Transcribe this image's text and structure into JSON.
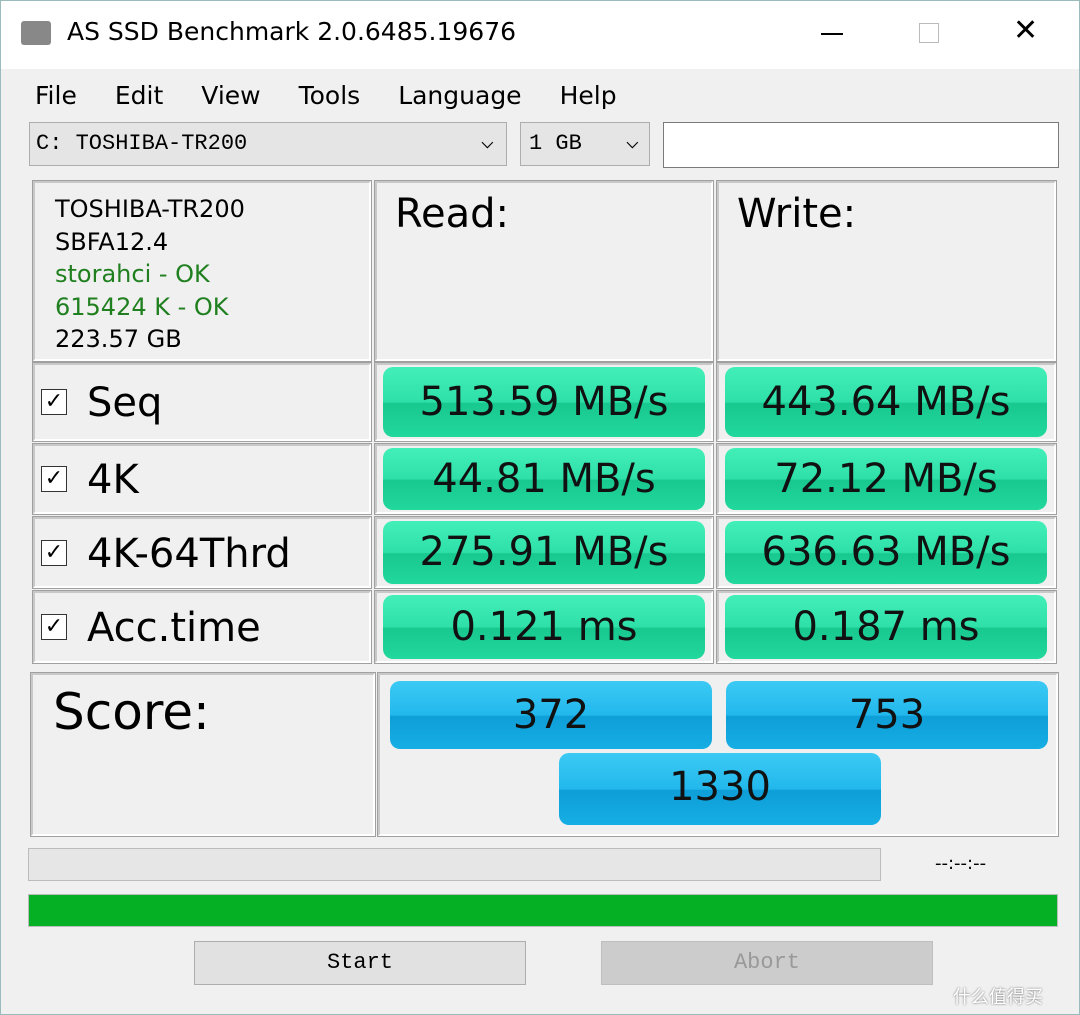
{
  "window": {
    "title": "AS SSD Benchmark 2.0.6485.19676"
  },
  "menu": [
    "File",
    "Edit",
    "View",
    "Tools",
    "Language",
    "Help"
  ],
  "drive_select": "C: TOSHIBA-TR200",
  "size_select": "1 GB",
  "info": [
    "TOSHIBA-TR200",
    "SBFA12.4",
    "storahci - OK",
    "615424 K - OK",
    "223.57 GB"
  ],
  "headers": {
    "read": "Read:",
    "write": "Write:"
  },
  "tests": [
    {
      "name": "Seq",
      "read": "513.59 MB/s",
      "write": "443.64 MB/s"
    },
    {
      "name": "4K",
      "read": "44.81 MB/s",
      "write": "72.12 MB/s"
    },
    {
      "name": "4K-64Thrd",
      "read": "275.91 MB/s",
      "write": "636.63 MB/s"
    },
    {
      "name": "Acc.time",
      "read": "0.121 ms",
      "write": "0.187 ms"
    }
  ],
  "score": {
    "label": "Score:",
    "read": "372",
    "write": "753",
    "total": "1330"
  },
  "time": "--:--:--",
  "buttons": {
    "start": "Start",
    "abort": "Abort"
  },
  "watermark": "什么值得买"
}
